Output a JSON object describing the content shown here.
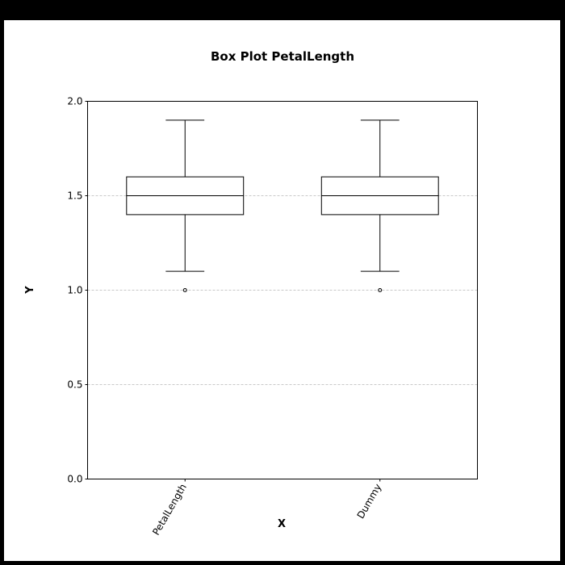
{
  "colors": {
    "frame_background": "#000000",
    "plot_background": "#ffffff",
    "stroke": "#000000",
    "grid": "#c8c8c8"
  },
  "chart_data": {
    "type": "box",
    "title": "Box Plot PetalLength",
    "xlabel": "X",
    "ylabel": "Y",
    "ylim": [
      0.0,
      2.0
    ],
    "yticks": [
      "0.0",
      "0.5",
      "1.0",
      "1.5",
      "2.0"
    ],
    "grid": true,
    "categories": [
      "PetalLength",
      "Dummy"
    ],
    "boxes": [
      {
        "label": "PetalLength",
        "whisker_low": 1.1,
        "q1": 1.4,
        "median": 1.5,
        "q3": 1.6,
        "whisker_high": 1.9,
        "outliers": [
          1.0
        ]
      },
      {
        "label": "Dummy",
        "whisker_low": 1.1,
        "q1": 1.4,
        "median": 1.5,
        "q3": 1.6,
        "whisker_high": 1.9,
        "outliers": [
          1.0
        ]
      }
    ]
  }
}
